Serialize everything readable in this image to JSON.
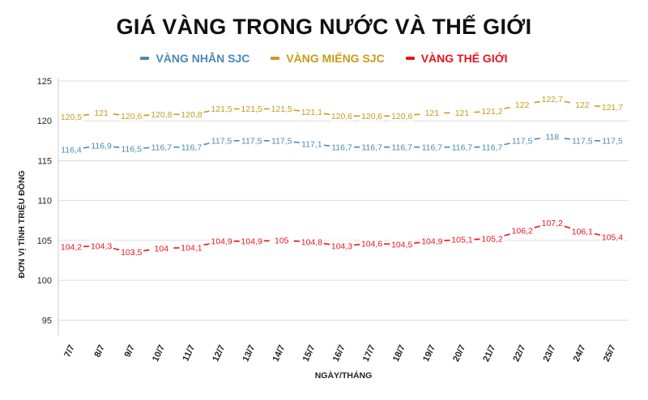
{
  "chart_data": {
    "type": "line",
    "title": "GIÁ VÀNG TRONG NƯỚC VÀ THẾ GIỚI",
    "xlabel": "NGÀY/THÁNG",
    "ylabel": "ĐƠN VỊ TÍNH TRIỆU ĐỒNG",
    "ylim": [
      93,
      125
    ],
    "yticks": [
      "95",
      "100",
      "105",
      "110",
      "115",
      "120",
      "125"
    ],
    "grid": true,
    "legend_position": "top-center",
    "categories": [
      "7/7",
      "8/7",
      "9/7",
      "10/7",
      "11/7",
      "12/7",
      "13/7",
      "14/7",
      "15/7",
      "16/7",
      "17/7",
      "18/7",
      "19/7",
      "20/7",
      "21/7",
      "22/7",
      "23/7",
      "24/7",
      "25/7"
    ],
    "series": [
      {
        "name": "VÀNG NHẪN SJC",
        "color": "#4a8ab8",
        "values": [
          116.4,
          116.9,
          116.5,
          116.7,
          116.7,
          117.5,
          117.5,
          117.5,
          117.1,
          116.7,
          116.7,
          116.7,
          116.7,
          116.7,
          116.7,
          117.5,
          118,
          117.5,
          117.5
        ],
        "labels": [
          "116,4",
          "116,9",
          "116,5",
          "116,7",
          "116,7",
          "117,5",
          "117,5",
          "117,5",
          "117,1",
          "116,7",
          "116,7",
          "116,7",
          "116,7",
          "116,7",
          "116,7",
          "117,5",
          "118",
          "117,5",
          "117,5"
        ]
      },
      {
        "name": "VÀNG MIẾNG SJC",
        "color": "#c99a1a",
        "values": [
          120.5,
          121,
          120.6,
          120.8,
          120.8,
          121.5,
          121.5,
          121.5,
          121.1,
          120.6,
          120.6,
          120.6,
          121,
          121,
          121.2,
          122,
          122.7,
          122,
          121.7
        ],
        "labels": [
          "120,5",
          "121",
          "120,6",
          "120,8",
          "120,8",
          "121,5",
          "121,5",
          "121,5",
          "121,1",
          "120,6",
          "120,6",
          "120,6",
          "121",
          "121",
          "121,2",
          "122",
          "122,7",
          "122",
          "121,7"
        ]
      },
      {
        "name": "VÀNG THẾ GIỚI",
        "color": "#e8141c",
        "values": [
          104.2,
          104.3,
          103.5,
          104,
          104.1,
          104.9,
          104.9,
          105,
          104.8,
          104.3,
          104.6,
          104.5,
          104.9,
          105.1,
          105.2,
          106.2,
          107.2,
          106.1,
          105.4
        ],
        "labels": [
          "104,2",
          "104,3",
          "103,5",
          "104",
          "104,1",
          "104,9",
          "104,9",
          "105",
          "104,8",
          "104,3",
          "104,6",
          "104,5",
          "104,9",
          "105,1",
          "105,2",
          "106,2",
          "107,2",
          "106,1",
          "105,4"
        ]
      }
    ]
  }
}
